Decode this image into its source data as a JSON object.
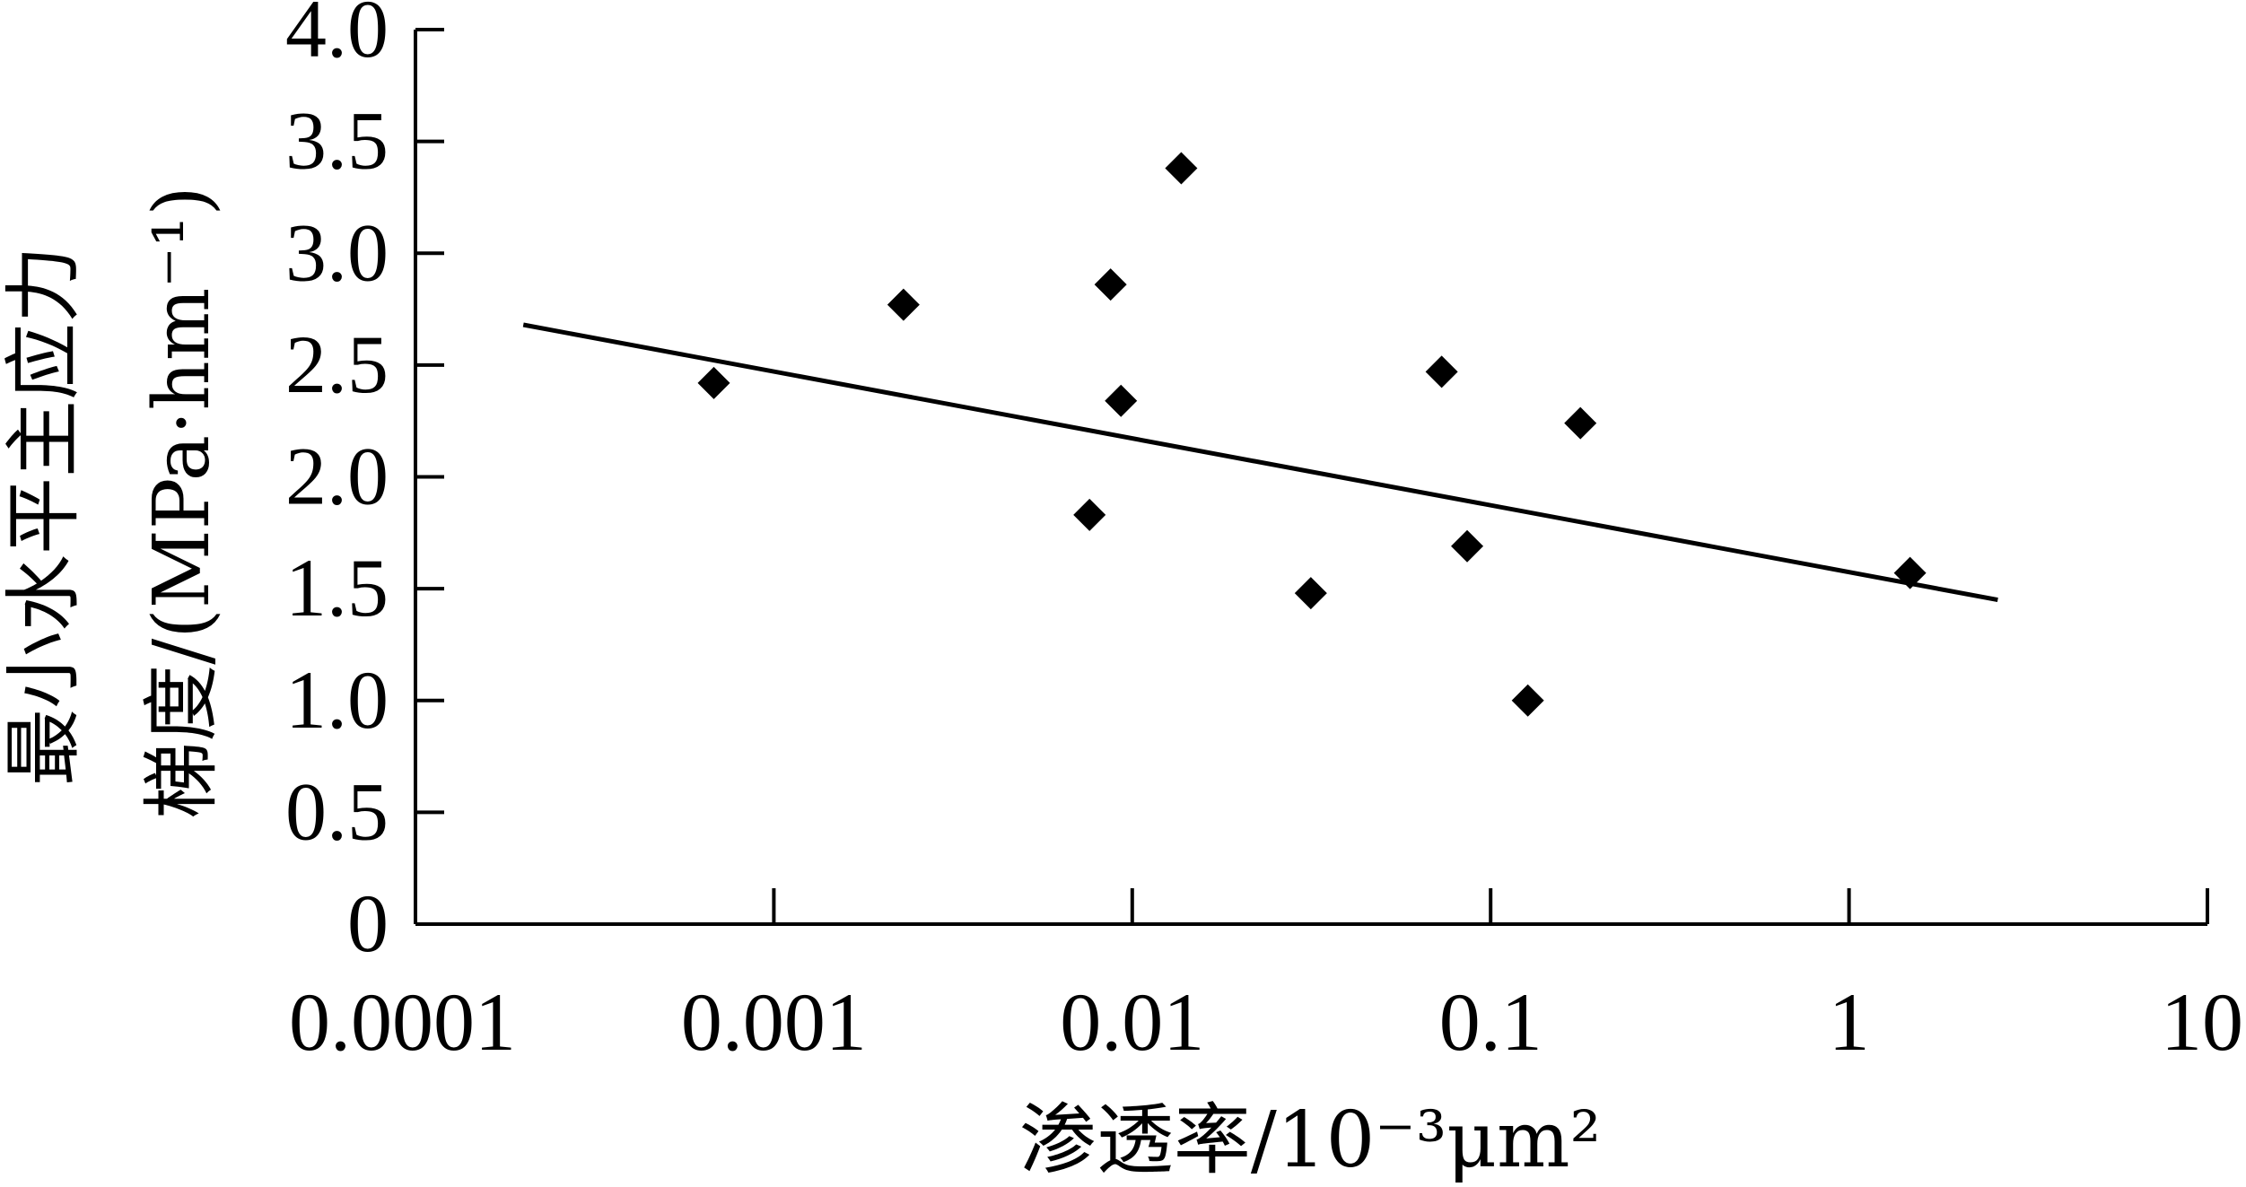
{
  "chart_data": {
    "type": "scatter",
    "title": "",
    "xlabel": "渗透率/10⁻³μm²",
    "ylabel_line1": "最小水平主应力",
    "ylabel_line2": "梯度/(MPa·hm⁻¹)",
    "x_scale": "log",
    "xlim": [
      0.0001,
      10
    ],
    "ylim": [
      0,
      4.0
    ],
    "x_ticks": [
      0.0001,
      0.001,
      0.01,
      0.1,
      1,
      10
    ],
    "x_tick_labels": [
      "0.0001",
      "0.001",
      "0.01",
      "0.1",
      "1",
      "10"
    ],
    "y_ticks": [
      0,
      0.5,
      1.0,
      1.5,
      2.0,
      2.5,
      3.0,
      3.5,
      4.0
    ],
    "y_tick_labels": [
      "0",
      "0.5",
      "1.0",
      "1.5",
      "2.0",
      "2.5",
      "3.0",
      "3.5",
      "4.0"
    ],
    "grid": false,
    "series": [
      {
        "marker": "diamond",
        "x": [
          0.00068,
          0.0023,
          0.0076,
          0.0087,
          0.0093,
          0.0137,
          0.0315,
          0.073,
          0.086,
          0.127,
          0.178,
          1.48
        ],
        "y": [
          2.42,
          2.77,
          1.83,
          2.86,
          2.34,
          3.38,
          1.48,
          2.47,
          1.69,
          1.0,
          2.24,
          1.57
        ]
      }
    ],
    "trendline": {
      "x": [
        0.0002,
        2.6
      ],
      "y": [
        2.68,
        1.45
      ]
    }
  }
}
